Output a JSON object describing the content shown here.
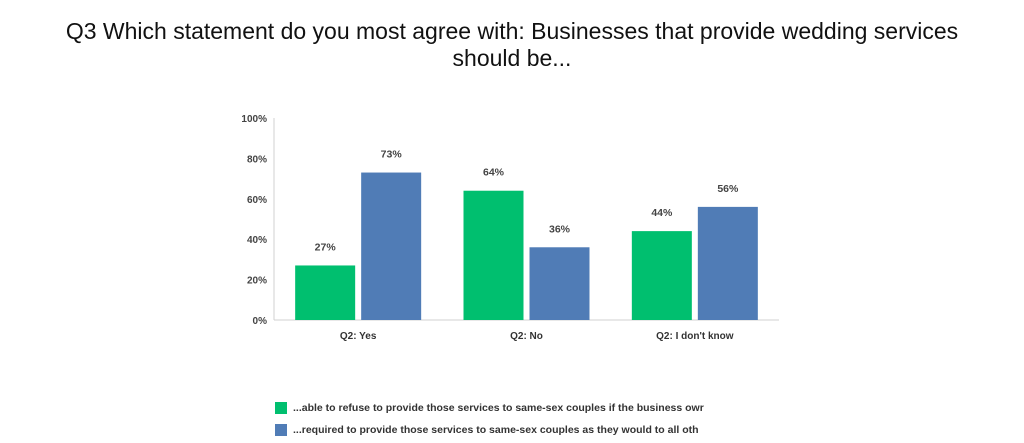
{
  "title_line1": "Q3 Which statement do you most agree with: Businesses that provide wedding services",
  "title_line2": "should be...",
  "chart_data": {
    "type": "bar",
    "categories": [
      "Q2: Yes",
      "Q2: No",
      "Q2: I don't know"
    ],
    "series": [
      {
        "name": "...able to refuse to provide those services to same-sex couples if the business owr",
        "color": "#00bf6f",
        "values": [
          27,
          64,
          44
        ]
      },
      {
        "name": "...required to provide those services to same-sex couples as they would to all oth",
        "color": "#507cb6",
        "values": [
          73,
          36,
          56
        ]
      }
    ],
    "data_labels": [
      [
        "27%",
        "64%",
        "44%"
      ],
      [
        "73%",
        "36%",
        "56%"
      ]
    ],
    "y_ticks": [
      "0%",
      "20%",
      "40%",
      "60%",
      "80%",
      "100%"
    ],
    "ylim": [
      0,
      100
    ],
    "grid": false,
    "legend_position": "bottom"
  }
}
